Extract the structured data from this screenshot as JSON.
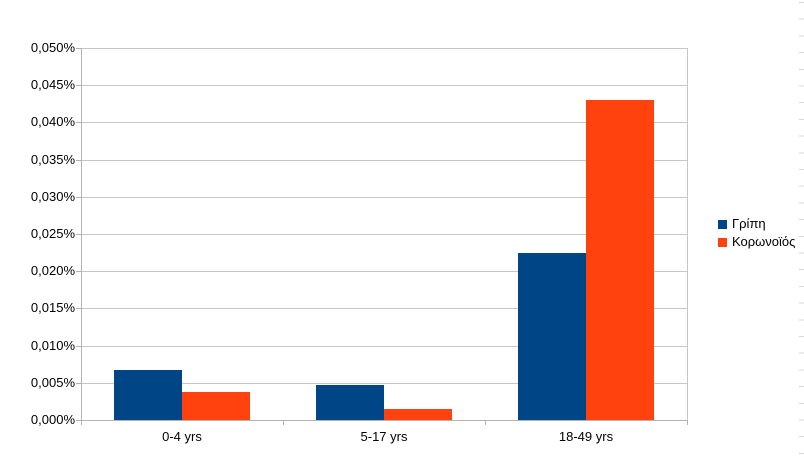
{
  "chart_data": {
    "type": "bar",
    "title": "",
    "xlabel": "",
    "ylabel": "",
    "value_unit": "%",
    "categories": [
      "0-4 yrs",
      "5-17 yrs",
      "18-49 yrs"
    ],
    "series": [
      {
        "name": "Γρίπη",
        "color": "#004586",
        "values": [
          0.0067,
          0.0047,
          0.0225
        ]
      },
      {
        "name": "Κορωνοϊός",
        "color": "#FF420E",
        "values": [
          0.0037,
          0.0015,
          0.043
        ]
      }
    ],
    "ylim": [
      0,
      0.05
    ],
    "y_ticks": [
      {
        "value": 0.0,
        "label": "0,000%"
      },
      {
        "value": 0.005,
        "label": "0,005%"
      },
      {
        "value": 0.01,
        "label": "0,010%"
      },
      {
        "value": 0.015,
        "label": "0,015%"
      },
      {
        "value": 0.02,
        "label": "0,020%"
      },
      {
        "value": 0.025,
        "label": "0,025%"
      },
      {
        "value": 0.03,
        "label": "0,030%"
      },
      {
        "value": 0.035,
        "label": "0,035%"
      },
      {
        "value": 0.04,
        "label": "0,040%"
      },
      {
        "value": 0.045,
        "label": "0,045%"
      },
      {
        "value": 0.05,
        "label": "0,050%"
      }
    ],
    "grid": "horizontal",
    "legend_position": "right",
    "legend": [
      "Γρίπη",
      "Κορωνοϊός"
    ]
  },
  "colors": {
    "background": "#FFFFFF",
    "gridline": "#C6C6C6",
    "axis": "#B3B3B3",
    "text": "#000000",
    "series_flu": "#004586",
    "series_covid": "#FF420E",
    "sheet_row_line": "#D9D9D9"
  }
}
